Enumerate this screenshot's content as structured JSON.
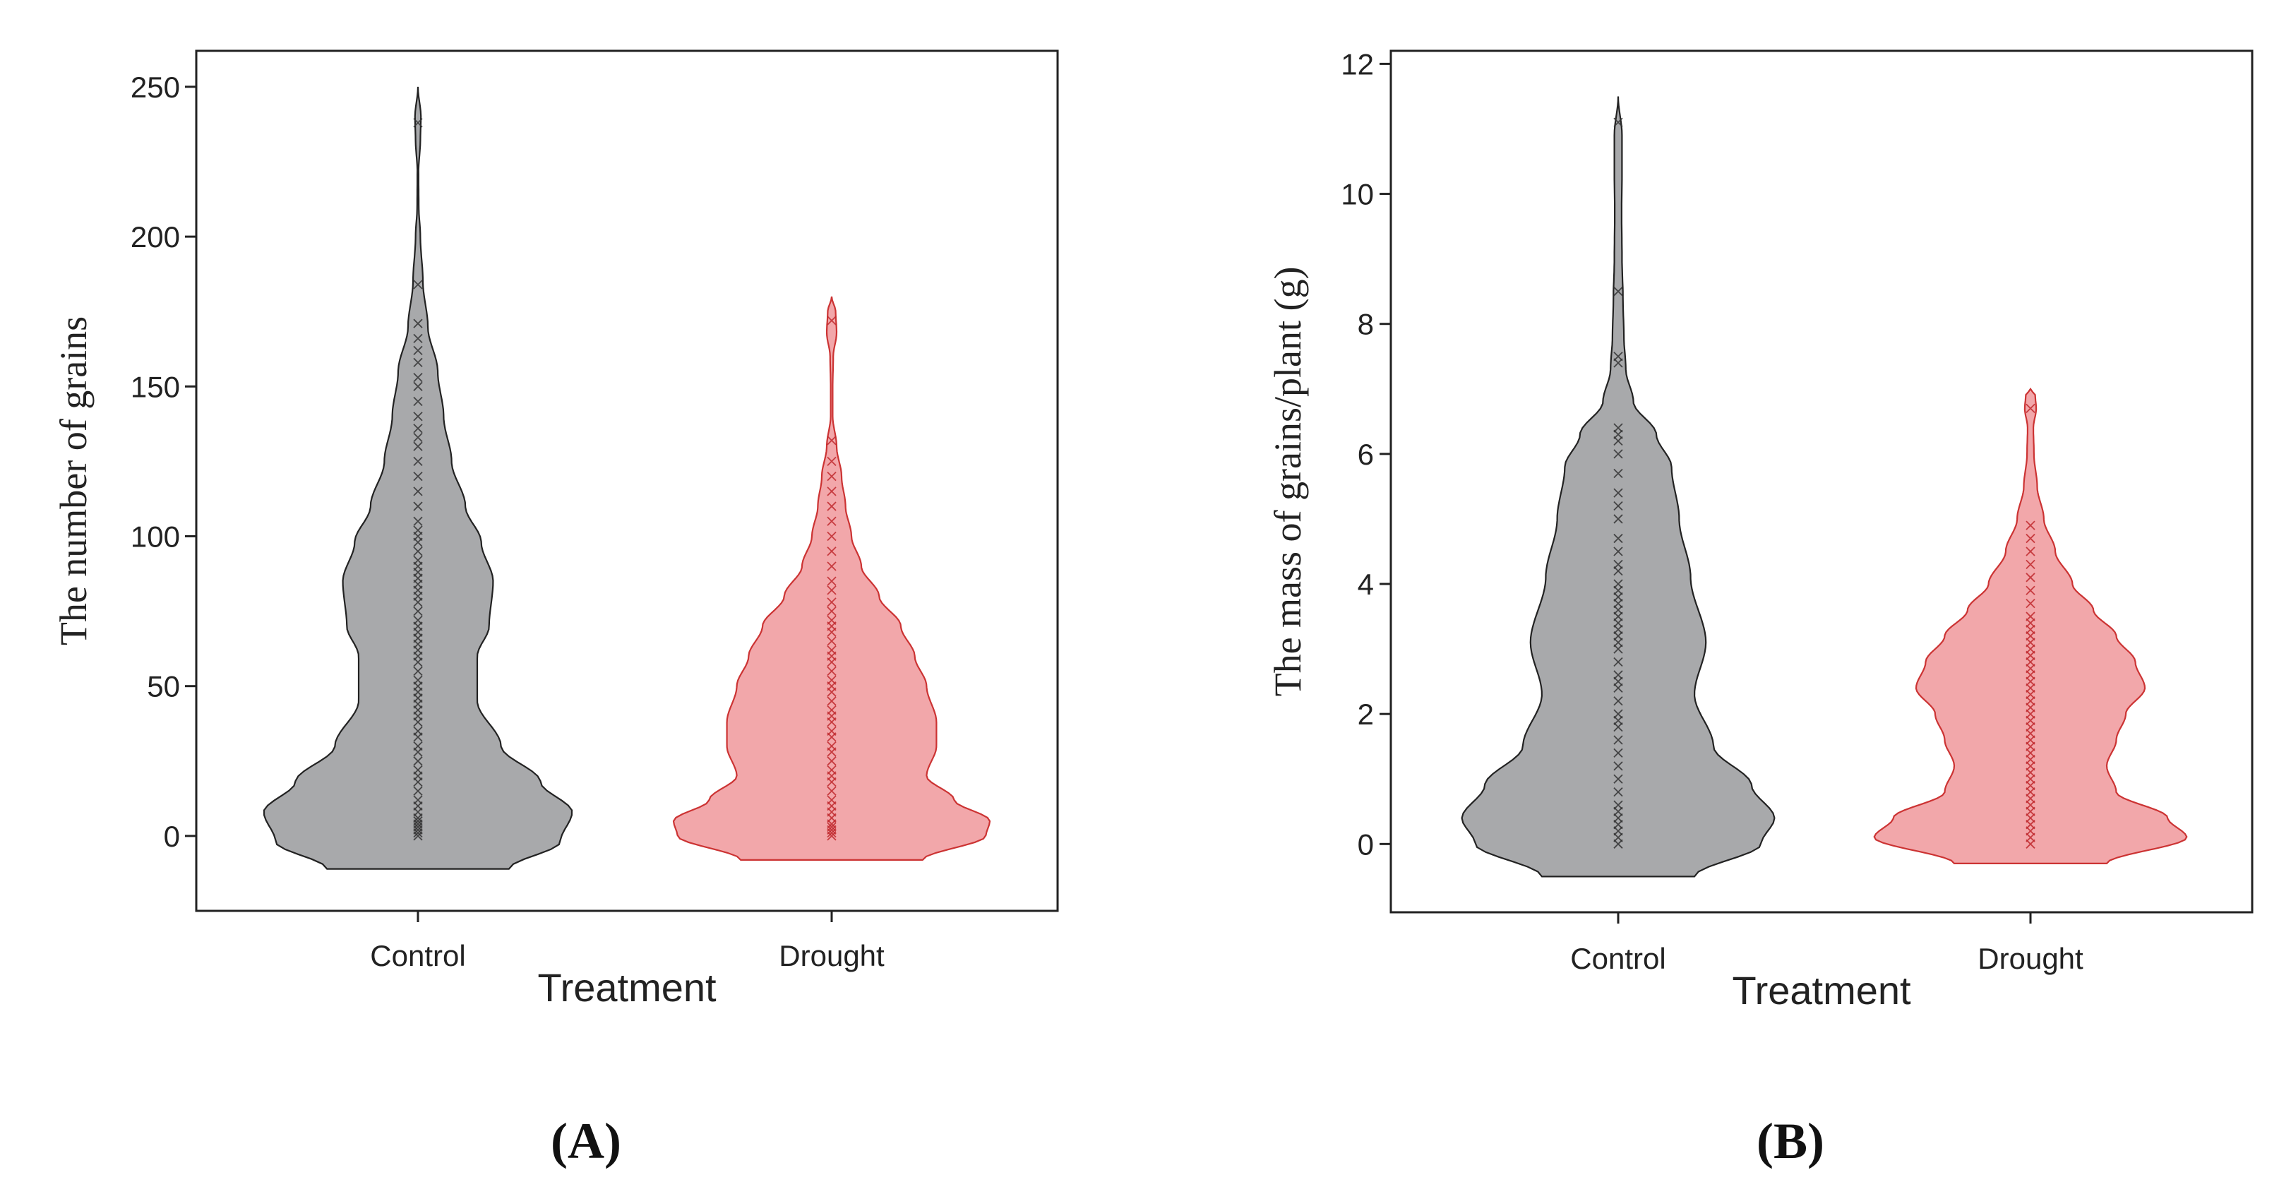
{
  "panels": [
    {
      "panel_label": "(A)",
      "chart_data": {
        "type": "violin",
        "title": "",
        "xlabel": "Treatment",
        "ylabel": "The number of grains",
        "categories": [
          "Control",
          "Drought"
        ],
        "yticks": [
          0,
          50,
          100,
          150,
          200,
          250
        ],
        "ylim": [
          -25,
          262
        ],
        "grid": false,
        "legend": "none",
        "series": [
          {
            "category": "Control",
            "color": "#a8a9ab",
            "edge": "#222222",
            "range": [
              -11,
              250
            ],
            "density": [
              [
                -11,
                0.46
              ],
              [
                -2,
                0.72
              ],
              [
                8,
                0.78
              ],
              [
                18,
                0.62
              ],
              [
                30,
                0.42
              ],
              [
                45,
                0.3
              ],
              [
                60,
                0.3
              ],
              [
                70,
                0.36
              ],
              [
                85,
                0.38
              ],
              [
                98,
                0.32
              ],
              [
                110,
                0.24
              ],
              [
                125,
                0.17
              ],
              [
                140,
                0.13
              ],
              [
                155,
                0.1
              ],
              [
                170,
                0.05
              ],
              [
                185,
                0.025
              ],
              [
                200,
                0.012
              ],
              [
                210,
                0.004
              ],
              [
                222,
                0.003
              ],
              [
                232,
                0.012
              ],
              [
                240,
                0.015
              ],
              [
                250,
                0.0
              ]
            ],
            "points": [
              0,
              1,
              2,
              3,
              4,
              5,
              6,
              8,
              10,
              12,
              15,
              18,
              20,
              22,
              25,
              28,
              30,
              33,
              35,
              38,
              40,
              42,
              44,
              46,
              48,
              50,
              52,
              55,
              58,
              60,
              62,
              64,
              66,
              68,
              70,
              72,
              75,
              78,
              80,
              82,
              84,
              86,
              88,
              90,
              92,
              95,
              98,
              100,
              102,
              105,
              110,
              115,
              120,
              125,
              130,
              133,
              136,
              140,
              145,
              150,
              153,
              158,
              162,
              166,
              171,
              184,
              238
            ]
          },
          {
            "category": "Drought",
            "color": "#f2a7aa",
            "edge": "#cc3333",
            "range": [
              -8,
              180
            ],
            "density": [
              [
                -8,
                0.46
              ],
              [
                0,
                0.78
              ],
              [
                5,
                0.8
              ],
              [
                12,
                0.62
              ],
              [
                20,
                0.48
              ],
              [
                30,
                0.53
              ],
              [
                38,
                0.53
              ],
              [
                50,
                0.48
              ],
              [
                60,
                0.42
              ],
              [
                70,
                0.35
              ],
              [
                80,
                0.24
              ],
              [
                90,
                0.15
              ],
              [
                100,
                0.1
              ],
              [
                110,
                0.07
              ],
              [
                120,
                0.05
              ],
              [
                130,
                0.025
              ],
              [
                140,
                0.005
              ],
              [
                150,
                0.005
              ],
              [
                160,
                0.008
              ],
              [
                168,
                0.025
              ],
              [
                175,
                0.02
              ],
              [
                180,
                0.0
              ]
            ],
            "points": [
              0,
              1,
              2,
              3,
              4,
              6,
              8,
              10,
              12,
              15,
              18,
              20,
              22,
              25,
              28,
              30,
              33,
              35,
              38,
              40,
              42,
              45,
              48,
              50,
              52,
              55,
              58,
              60,
              62,
              65,
              68,
              70,
              72,
              75,
              78,
              82,
              85,
              90,
              95,
              100,
              105,
              110,
              115,
              120,
              125,
              132,
              172
            ]
          }
        ]
      }
    },
    {
      "panel_label": "(B)",
      "chart_data": {
        "type": "violin",
        "title": "",
        "xlabel": "Treatment",
        "ylabel": "The mass of grains/plant (g)",
        "categories": [
          "Control",
          "Drought"
        ],
        "yticks": [
          0,
          2,
          4,
          6,
          8,
          10,
          12
        ],
        "ylim": [
          -1.05,
          12.2
        ],
        "grid": false,
        "legend": "none",
        "series": [
          {
            "category": "Control",
            "color": "#a8a9ab",
            "edge": "#222222",
            "range": [
              -0.5,
              11.5
            ],
            "density": [
              [
                -0.5,
                0.4
              ],
              [
                0,
                0.75
              ],
              [
                0.4,
                0.82
              ],
              [
                0.9,
                0.7
              ],
              [
                1.5,
                0.5
              ],
              [
                2.3,
                0.4
              ],
              [
                3.1,
                0.46
              ],
              [
                4.1,
                0.38
              ],
              [
                5.0,
                0.32
              ],
              [
                5.8,
                0.28
              ],
              [
                6.3,
                0.2
              ],
              [
                6.8,
                0.08
              ],
              [
                7.3,
                0.04
              ],
              [
                7.8,
                0.03
              ],
              [
                8.4,
                0.025
              ],
              [
                9.0,
                0.02
              ],
              [
                9.7,
                0.018
              ],
              [
                10.3,
                0.02
              ],
              [
                10.9,
                0.02
              ],
              [
                11.5,
                0.0
              ]
            ],
            "points": [
              0,
              0.1,
              0.2,
              0.3,
              0.4,
              0.5,
              0.6,
              0.8,
              1.0,
              1.2,
              1.4,
              1.6,
              1.8,
              1.9,
              2.0,
              2.2,
              2.4,
              2.5,
              2.6,
              2.8,
              3.0,
              3.1,
              3.2,
              3.3,
              3.4,
              3.5,
              3.6,
              3.7,
              3.8,
              3.9,
              4.0,
              4.2,
              4.3,
              4.5,
              4.7,
              5.0,
              5.2,
              5.4,
              5.7,
              6.0,
              6.2,
              6.3,
              6.4,
              7.4,
              7.5,
              8.5,
              11.1
            ]
          },
          {
            "category": "Drought",
            "color": "#f2a7aa",
            "edge": "#cc3333",
            "range": [
              -0.3,
              7.0
            ],
            "density": [
              [
                -0.3,
                0.4
              ],
              [
                0.1,
                0.82
              ],
              [
                0.4,
                0.72
              ],
              [
                0.8,
                0.45
              ],
              [
                1.2,
                0.4
              ],
              [
                1.6,
                0.45
              ],
              [
                2.0,
                0.5
              ],
              [
                2.4,
                0.6
              ],
              [
                2.8,
                0.55
              ],
              [
                3.2,
                0.45
              ],
              [
                3.6,
                0.33
              ],
              [
                4.0,
                0.22
              ],
              [
                4.5,
                0.13
              ],
              [
                5.0,
                0.07
              ],
              [
                5.5,
                0.035
              ],
              [
                6.0,
                0.018
              ],
              [
                6.4,
                0.015
              ],
              [
                6.7,
                0.03
              ],
              [
                6.9,
                0.025
              ],
              [
                7.0,
                0.0
              ]
            ],
            "points": [
              0,
              0.1,
              0.2,
              0.3,
              0.4,
              0.5,
              0.6,
              0.7,
              0.8,
              0.9,
              1.0,
              1.1,
              1.2,
              1.3,
              1.4,
              1.5,
              1.6,
              1.7,
              1.8,
              1.9,
              2.0,
              2.1,
              2.2,
              2.3,
              2.4,
              2.5,
              2.6,
              2.7,
              2.8,
              2.9,
              3.0,
              3.1,
              3.2,
              3.3,
              3.4,
              3.5,
              3.7,
              3.9,
              4.1,
              4.3,
              4.5,
              4.7,
              4.9,
              6.7
            ]
          }
        ]
      }
    }
  ]
}
